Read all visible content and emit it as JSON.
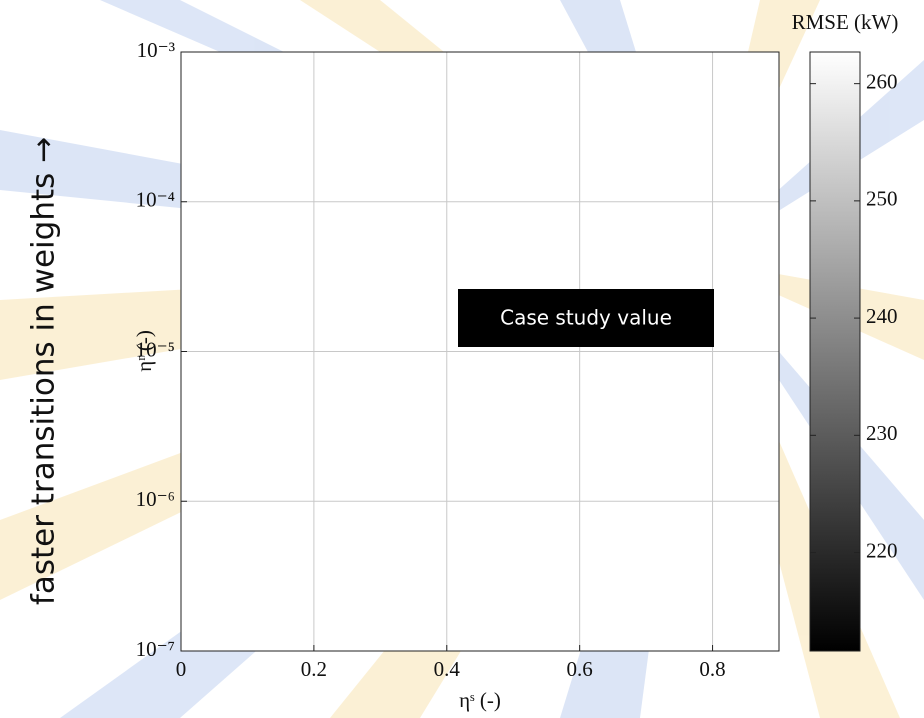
{
  "chart_data": {
    "type": "heatmap",
    "xlabel": "ηˢ (-)",
    "ylabel": "ηʳ (-)",
    "xlim": [
      0,
      0.9
    ],
    "xticks": [
      0,
      0.2,
      0.4,
      0.6,
      0.8
    ],
    "ylim": [
      1e-07,
      0.001
    ],
    "log_y": true,
    "yticks": [
      {
        "value": 1e-07,
        "label": "10⁻⁷"
      },
      {
        "value": 1e-06,
        "label": "10⁻⁶"
      },
      {
        "value": 1e-05,
        "label": "10⁻⁵"
      },
      {
        "value": 0.0001,
        "label": "10⁻⁴"
      },
      {
        "value": 0.001,
        "label": "10⁻³"
      }
    ],
    "grid": true,
    "colorbar": {
      "title": "RMSE (kW)",
      "lim": [
        211.6,
        262.7
      ],
      "ticks": [
        220,
        230,
        240,
        250,
        260
      ],
      "colors": [
        "#000000",
        "#ffffff"
      ]
    },
    "annotations": [
      "Case study value",
      "faster transitions in weights →"
    ]
  }
}
